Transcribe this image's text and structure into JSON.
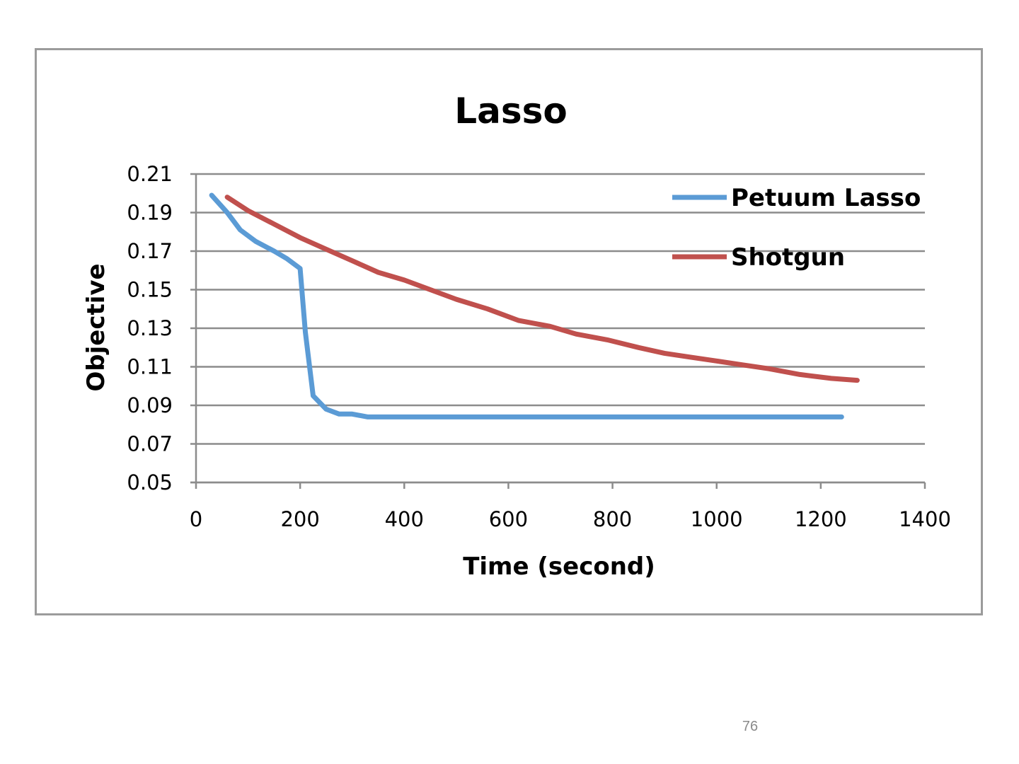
{
  "chart_data": {
    "type": "line",
    "title": "Lasso",
    "xlabel": "Time (second)",
    "ylabel": "Objective",
    "xlim": [
      0,
      1400
    ],
    "ylim": [
      0.05,
      0.21
    ],
    "x_ticks": [
      "0",
      "200",
      "400",
      "600",
      "800",
      "1000",
      "1200",
      "1400"
    ],
    "y_ticks": [
      "0.05",
      "0.07",
      "0.09",
      "0.11",
      "0.13",
      "0.15",
      "0.17",
      "0.19",
      "0.21"
    ],
    "grid": true,
    "legend_position": "top-right",
    "series": [
      {
        "name": "Petuum Lasso",
        "color": "#5b9bd5",
        "x": [
          30,
          60,
          85,
          115,
          150,
          175,
          200,
          210,
          225,
          250,
          275,
          300,
          330,
          400,
          600,
          800,
          1000,
          1200,
          1240
        ],
        "y": [
          0.199,
          0.19,
          0.181,
          0.175,
          0.17,
          0.166,
          0.161,
          0.128,
          0.095,
          0.088,
          0.0855,
          0.0855,
          0.084,
          0.084,
          0.084,
          0.084,
          0.084,
          0.084,
          0.084
        ]
      },
      {
        "name": "Shotgun",
        "color": "#c0504d",
        "x": [
          60,
          100,
          150,
          200,
          250,
          300,
          350,
          400,
          450,
          500,
          560,
          620,
          680,
          730,
          790,
          850,
          900,
          950,
          1000,
          1050,
          1100,
          1160,
          1220,
          1270
        ],
        "y": [
          0.198,
          0.191,
          0.184,
          0.177,
          0.171,
          0.165,
          0.159,
          0.155,
          0.15,
          0.145,
          0.14,
          0.134,
          0.131,
          0.127,
          0.124,
          0.12,
          0.117,
          0.115,
          0.113,
          0.111,
          0.109,
          0.106,
          0.104,
          0.103
        ]
      }
    ]
  },
  "page_number": "76"
}
